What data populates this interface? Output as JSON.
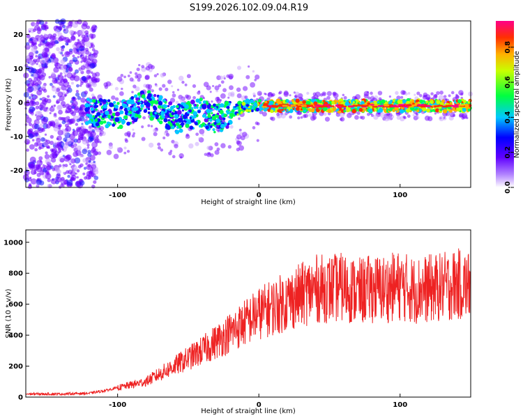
{
  "title": "S199.2026.102.09.04.R19",
  "chart_data": [
    {
      "type": "heatmap",
      "xlabel": "Height of straight line (km)",
      "ylabel": "Frequency (Hz)",
      "xlim": [
        -165,
        150
      ],
      "ylim": [
        -25,
        24
      ],
      "xticks": [
        -100,
        0,
        100
      ],
      "yticks": [
        -20,
        -10,
        0,
        10,
        20
      ],
      "ridge": {
        "x": [
          -120,
          -110,
          -100,
          -90,
          -80,
          -70,
          -60,
          -50,
          -40,
          -30,
          -20,
          -10,
          0,
          20,
          60,
          100,
          150
        ],
        "freq_hz": [
          -3,
          -3,
          -4,
          -2,
          0,
          -2,
          -5,
          -4,
          -3,
          -5,
          -3,
          -1,
          -1,
          -1,
          -1,
          -1,
          -1
        ]
      },
      "colorbar": {
        "label": "Normalized spectral amplitude",
        "range": [
          0,
          0.95
        ],
        "ticks": [
          0.0,
          0.2,
          0.4,
          0.6,
          0.8
        ]
      }
    },
    {
      "type": "line",
      "series_name": "SNR",
      "color": "#ee2222",
      "xlabel": "Height of straight line (km)",
      "ylabel": "SNR (10 * v/v)",
      "xlim": [
        -165,
        150
      ],
      "ylim": [
        0,
        1080
      ],
      "xticks": [
        -100,
        0,
        100
      ],
      "yticks": [
        0,
        200,
        400,
        600,
        800,
        1000
      ],
      "x": [
        -165,
        -140,
        -120,
        -110,
        -100,
        -90,
        -80,
        -70,
        -60,
        -50,
        -40,
        -30,
        -20,
        -10,
        0,
        10,
        20,
        30,
        40,
        50,
        60,
        70,
        80,
        90,
        100,
        110,
        120,
        130,
        140,
        150
      ],
      "y": [
        20,
        20,
        25,
        40,
        60,
        80,
        100,
        150,
        200,
        250,
        300,
        360,
        420,
        480,
        540,
        580,
        620,
        660,
        700,
        700,
        710,
        680,
        700,
        700,
        720,
        690,
        700,
        710,
        730,
        720
      ]
    }
  ]
}
